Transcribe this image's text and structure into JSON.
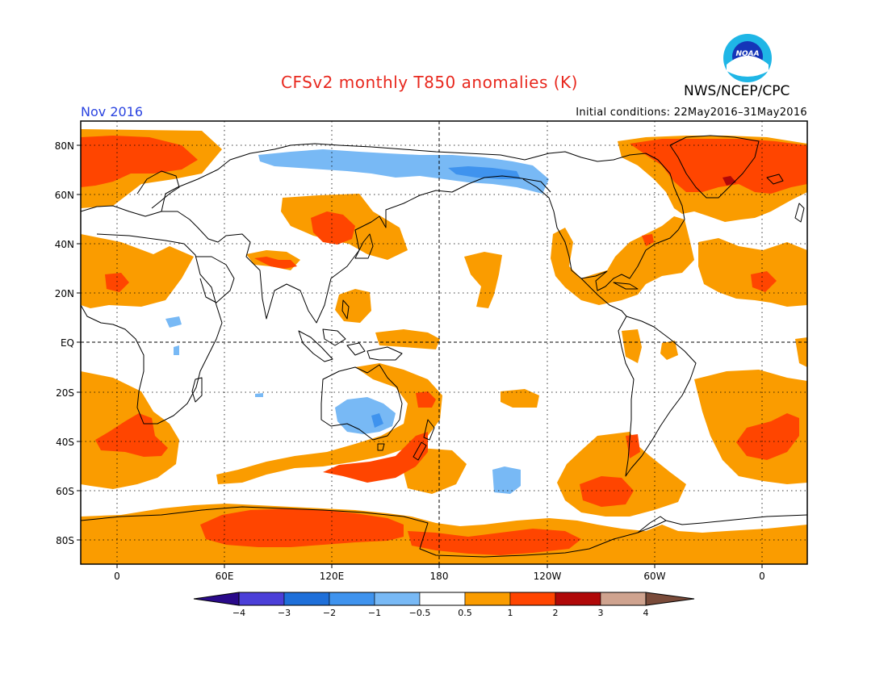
{
  "title": "CFSv2 monthly T850 anomalies (K)",
  "agency": "NWS/NCEP/CPC",
  "logo_text": "NOAA",
  "valid_month": "Nov 2016",
  "initial_conditions": "Initial conditions: 22May2016–31May2016",
  "lat_labels": [
    "80N",
    "60N",
    "40N",
    "20N",
    "EQ",
    "20S",
    "40S",
    "60S",
    "80S"
  ],
  "lon_labels": [
    "0",
    "60E",
    "120E",
    "180",
    "120W",
    "60W",
    "0"
  ],
  "colorbar": {
    "tick_labels": [
      "−4",
      "−3",
      "−2",
      "−1",
      "−0.5",
      "0.5",
      "1",
      "2",
      "3",
      "4"
    ],
    "colors": [
      "#2a0a8a",
      "#4b3fd8",
      "#1e6fd9",
      "#3f93ee",
      "#78b9f5",
      "#ffffff",
      "#fa9c00",
      "#ff4500",
      "#b00808",
      "#cfa38f",
      "#7a4b3a"
    ]
  }
}
